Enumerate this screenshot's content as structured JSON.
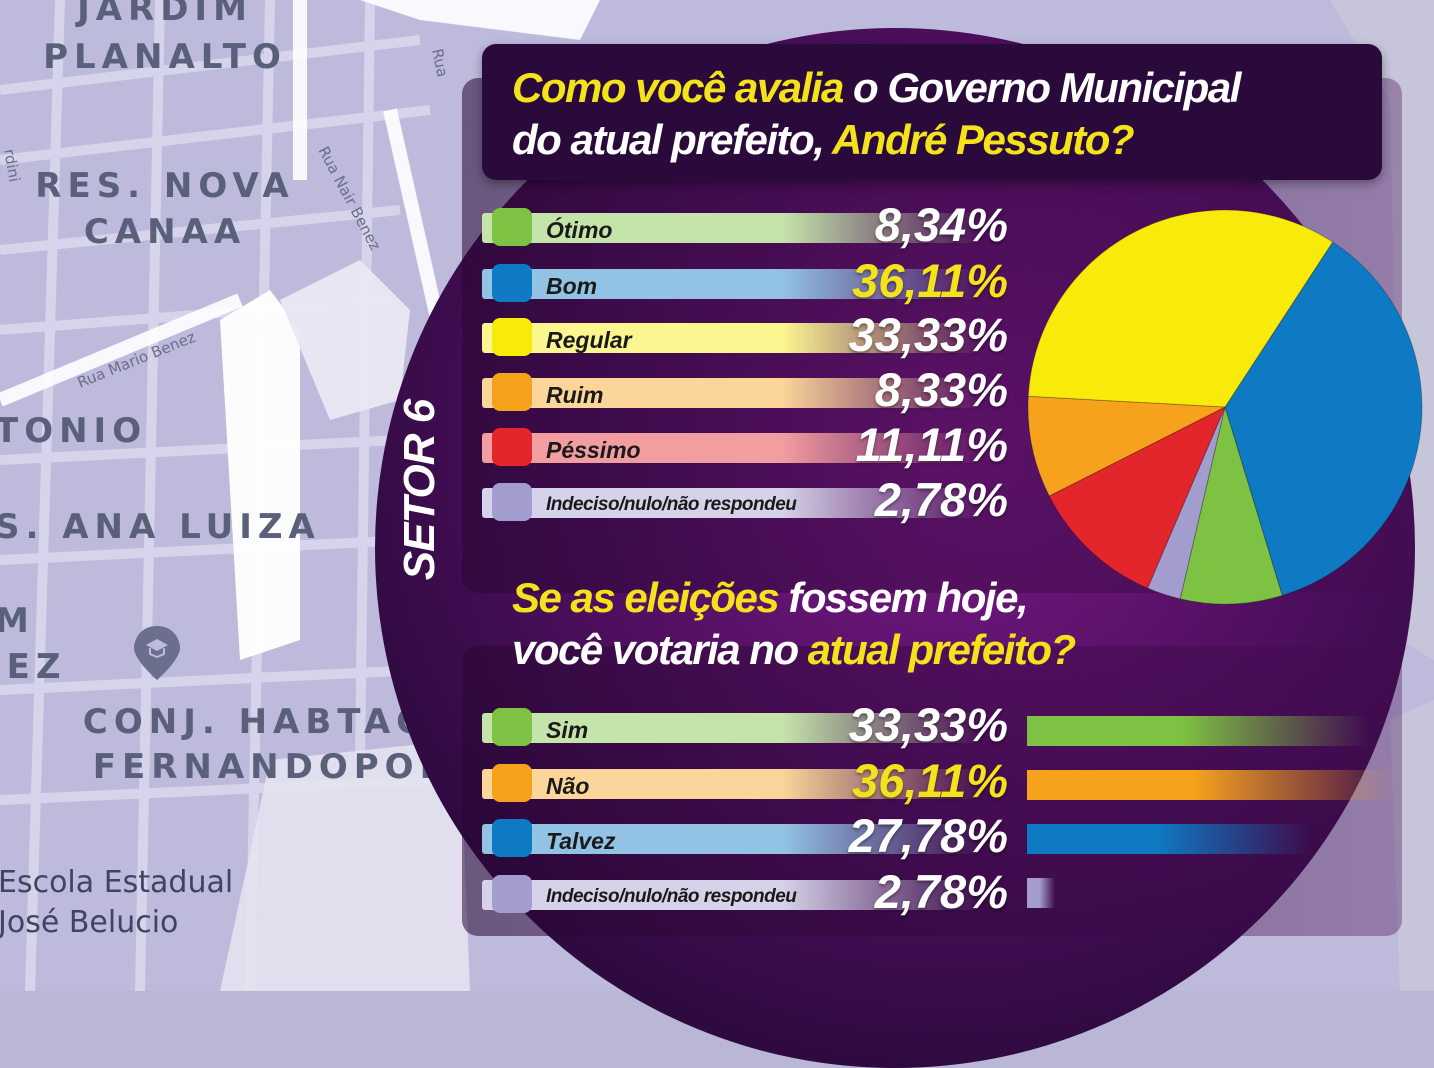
{
  "map": {
    "neighborhoods": [
      {
        "id": "jardim",
        "lines": [
          "JARDIM",
          "PLANALTO"
        ]
      },
      {
        "id": "nova-canaa",
        "lines": [
          "RES. NOVA",
          "CANAA"
        ]
      },
      {
        "id": "tonio",
        "lines": [
          "TONIO"
        ]
      },
      {
        "id": "ana-luiza",
        "lines": [
          "S. ANA LUIZA"
        ]
      },
      {
        "id": "m-ez",
        "lines": [
          "M",
          "IEZ"
        ]
      },
      {
        "id": "conj-habtac",
        "lines": [
          "CONJ. HABTAC",
          "FERNANDOPOL"
        ]
      }
    ],
    "streets": [
      "Rua Mario Benez",
      "Rua Nair Benez",
      "Rua",
      "rdini"
    ],
    "place": {
      "lines": [
        "Escola Estadual",
        "José Belucio"
      ],
      "icon": "graduation-cap-pin-icon"
    }
  },
  "sector_label": "SETOR 6",
  "q1": {
    "title_parts": [
      {
        "text": "Como você avalia",
        "highlight": true
      },
      {
        "text": " o Governo Municipal",
        "highlight": false
      }
    ],
    "title_parts_2": [
      {
        "text": "do atual prefeito, ",
        "highlight": false
      },
      {
        "text": "André Pessuto?",
        "highlight": true
      }
    ]
  },
  "q2": {
    "title_parts": [
      {
        "text": "Se as eleições",
        "highlight": true
      },
      {
        "text": " fossem hoje,",
        "highlight": false
      }
    ],
    "title_parts_2": [
      {
        "text": "você votaria no ",
        "highlight": false
      },
      {
        "text": "atual prefeito?",
        "highlight": true
      }
    ]
  },
  "chart_data": [
    {
      "type": "pie",
      "categories": [
        "Ótimo",
        "Bom",
        "Regular",
        "Ruim",
        "Péssimo",
        "Indeciso/nulo/não respondeu"
      ],
      "values": [
        8.34,
        36.11,
        33.33,
        8.33,
        11.11,
        2.78
      ],
      "labels": [
        "8,34%",
        "36,11%",
        "33,33%",
        "8,33%",
        "11,11%",
        "2,78%"
      ],
      "colors": [
        "#7dc242",
        "#0d7ac3",
        "#f8ea0b",
        "#f6a21d",
        "#e3262b",
        "#a39ccf"
      ],
      "highlighted": [
        false,
        true,
        false,
        false,
        false,
        false
      ],
      "pie_order": [
        1,
        0,
        5,
        4,
        3,
        2
      ]
    },
    {
      "type": "bar",
      "categories": [
        "Sim",
        "Não",
        "Talvez",
        "Indeciso/nulo/não respondeu"
      ],
      "values": [
        33.33,
        36.11,
        27.78,
        2.78
      ],
      "labels": [
        "33,33%",
        "36,11%",
        "27,78%",
        "2,78%"
      ],
      "colors": [
        "#7dc242",
        "#f6a21d",
        "#0d7ac3",
        "#a39ccf"
      ],
      "highlighted": [
        false,
        true,
        false,
        false
      ]
    }
  ]
}
